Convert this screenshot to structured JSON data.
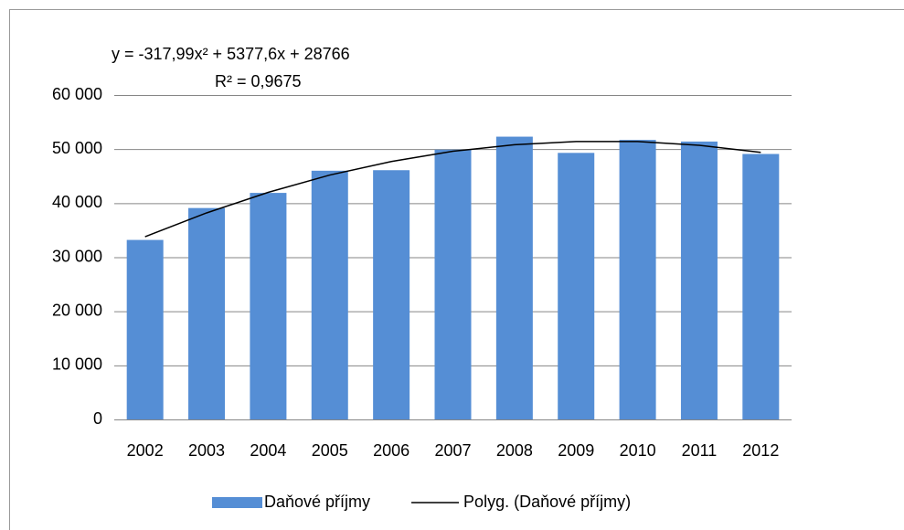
{
  "chart_data": {
    "type": "bar",
    "annotations": [
      "y = -317,99x² + 5377,6x + 28766",
      "R² = 0,9675"
    ],
    "categories": [
      "2002",
      "2003",
      "2004",
      "2005",
      "2006",
      "2007",
      "2008",
      "2009",
      "2010",
      "2011",
      "2012"
    ],
    "series": [
      {
        "name": "Daňové příjmy",
        "color": "#558ed5",
        "type": "bar",
        "values": [
          33200,
          39100,
          41900,
          46000,
          46100,
          49900,
          52300,
          49300,
          51700,
          51400,
          49100
        ]
      },
      {
        "name": "Polyg. (Daňové příjmy)",
        "color": "#000000",
        "type": "line",
        "values": [
          33800,
          38200,
          42000,
          45200,
          47700,
          49600,
          50800,
          51400,
          51400,
          50700,
          49400
        ]
      }
    ],
    "ylim": [
      0,
      60000
    ],
    "yticks": [
      0,
      {
        "value": 10000,
        "label": "10 000"
      },
      {
        "value": 20000,
        "label": "20 000"
      },
      {
        "value": 30000,
        "label": "30 000"
      },
      {
        "value": 40000,
        "label": "40 000"
      },
      {
        "value": 50000,
        "label": "50 000"
      },
      {
        "value": 60000,
        "label": "60 000"
      }
    ],
    "grid": true,
    "legend": "bottom"
  }
}
